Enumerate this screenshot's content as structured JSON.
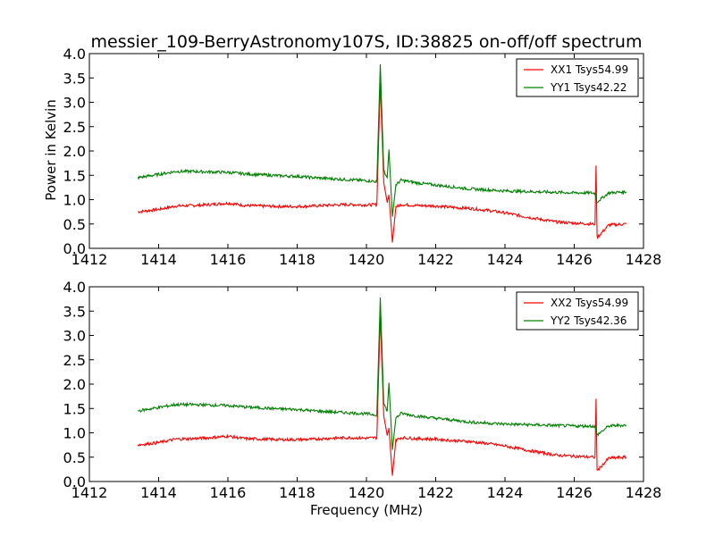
{
  "colors": {
    "xx": "#ff0000",
    "yy": "#008000"
  },
  "chart_data": [
    {
      "type": "line",
      "title": "messier_109-BerryAstronomy107S, ID:38825 on-off/off spectrum",
      "xlabel": "",
      "ylabel": "Power in Kelvin",
      "xlim": [
        1412,
        1428
      ],
      "ylim": [
        0.0,
        4.0
      ],
      "xticks": [
        "1412",
        "1414",
        "1416",
        "1418",
        "1420",
        "1422",
        "1424",
        "1426",
        "1428"
      ],
      "yticks": [
        "0.0",
        "0.5",
        "1.0",
        "1.5",
        "2.0",
        "2.5",
        "3.0",
        "3.5",
        "4.0"
      ],
      "legend_position": "top-right",
      "series": [
        {
          "name": "XX1 Tsys54.99",
          "color": "#ff0000",
          "points": [
            [
              1413.4,
              0.75
            ],
            [
              1414.0,
              0.8
            ],
            [
              1414.5,
              0.87
            ],
            [
              1415.0,
              0.88
            ],
            [
              1415.5,
              0.9
            ],
            [
              1416.0,
              0.93
            ],
            [
              1416.5,
              0.88
            ],
            [
              1417.0,
              0.87
            ],
            [
              1417.5,
              0.86
            ],
            [
              1418.0,
              0.86
            ],
            [
              1418.5,
              0.87
            ],
            [
              1419.0,
              0.89
            ],
            [
              1419.5,
              0.9
            ],
            [
              1420.0,
              0.89
            ],
            [
              1420.3,
              0.9
            ],
            [
              1420.4,
              3.4
            ],
            [
              1420.5,
              1.35
            ],
            [
              1420.6,
              0.95
            ],
            [
              1420.65,
              1.1
            ],
            [
              1420.75,
              0.12
            ],
            [
              1420.85,
              0.85
            ],
            [
              1421.0,
              0.9
            ],
            [
              1421.5,
              0.88
            ],
            [
              1422.0,
              0.87
            ],
            [
              1422.5,
              0.84
            ],
            [
              1423.0,
              0.82
            ],
            [
              1423.5,
              0.78
            ],
            [
              1424.0,
              0.73
            ],
            [
              1424.5,
              0.66
            ],
            [
              1425.0,
              0.6
            ],
            [
              1425.5,
              0.54
            ],
            [
              1426.0,
              0.52
            ],
            [
              1426.5,
              0.5
            ],
            [
              1426.6,
              0.5
            ],
            [
              1426.63,
              1.7
            ],
            [
              1426.66,
              0.22
            ],
            [
              1427.0,
              0.48
            ],
            [
              1427.5,
              0.5
            ]
          ]
        },
        {
          "name": "YY1 Tsys42.22",
          "color": "#008000",
          "points": [
            [
              1413.4,
              1.45
            ],
            [
              1414.0,
              1.52
            ],
            [
              1414.5,
              1.58
            ],
            [
              1415.0,
              1.58
            ],
            [
              1415.5,
              1.57
            ],
            [
              1416.0,
              1.56
            ],
            [
              1416.5,
              1.53
            ],
            [
              1417.0,
              1.51
            ],
            [
              1417.5,
              1.49
            ],
            [
              1418.0,
              1.48
            ],
            [
              1418.5,
              1.45
            ],
            [
              1419.0,
              1.43
            ],
            [
              1419.5,
              1.41
            ],
            [
              1420.0,
              1.39
            ],
            [
              1420.3,
              1.37
            ],
            [
              1420.4,
              3.78
            ],
            [
              1420.5,
              1.6
            ],
            [
              1420.6,
              1.45
            ],
            [
              1420.65,
              2.03
            ],
            [
              1420.75,
              0.65
            ],
            [
              1420.85,
              1.3
            ],
            [
              1421.0,
              1.4
            ],
            [
              1421.5,
              1.34
            ],
            [
              1422.0,
              1.3
            ],
            [
              1422.5,
              1.26
            ],
            [
              1423.0,
              1.22
            ],
            [
              1423.5,
              1.2
            ],
            [
              1424.0,
              1.18
            ],
            [
              1424.5,
              1.17
            ],
            [
              1425.0,
              1.16
            ],
            [
              1425.5,
              1.15
            ],
            [
              1426.0,
              1.14
            ],
            [
              1426.5,
              1.14
            ],
            [
              1426.6,
              1.13
            ],
            [
              1426.65,
              0.95
            ],
            [
              1427.0,
              1.14
            ],
            [
              1427.5,
              1.16
            ]
          ]
        }
      ]
    },
    {
      "type": "line",
      "title": "",
      "xlabel": "Frequency (MHz)",
      "ylabel": "",
      "xlim": [
        1412,
        1428
      ],
      "ylim": [
        0.0,
        4.0
      ],
      "xticks": [
        "1412",
        "1414",
        "1416",
        "1418",
        "1420",
        "1422",
        "1424",
        "1426",
        "1428"
      ],
      "yticks": [
        "0.0",
        "0.5",
        "1.0",
        "1.5",
        "2.0",
        "2.5",
        "3.0",
        "3.5",
        "4.0"
      ],
      "legend_position": "top-right",
      "series": [
        {
          "name": "XX2 Tsys54.99",
          "color": "#ff0000",
          "points": [
            [
              1413.4,
              0.75
            ],
            [
              1414.0,
              0.8
            ],
            [
              1414.5,
              0.87
            ],
            [
              1415.0,
              0.88
            ],
            [
              1415.5,
              0.9
            ],
            [
              1416.0,
              0.93
            ],
            [
              1416.5,
              0.88
            ],
            [
              1417.0,
              0.87
            ],
            [
              1417.5,
              0.86
            ],
            [
              1418.0,
              0.86
            ],
            [
              1418.5,
              0.87
            ],
            [
              1419.0,
              0.89
            ],
            [
              1419.5,
              0.9
            ],
            [
              1420.0,
              0.89
            ],
            [
              1420.3,
              0.9
            ],
            [
              1420.4,
              3.4
            ],
            [
              1420.5,
              1.35
            ],
            [
              1420.6,
              0.95
            ],
            [
              1420.65,
              1.1
            ],
            [
              1420.75,
              0.12
            ],
            [
              1420.85,
              0.85
            ],
            [
              1421.0,
              0.9
            ],
            [
              1421.5,
              0.88
            ],
            [
              1422.0,
              0.87
            ],
            [
              1422.5,
              0.84
            ],
            [
              1423.0,
              0.82
            ],
            [
              1423.5,
              0.78
            ],
            [
              1424.0,
              0.73
            ],
            [
              1424.5,
              0.66
            ],
            [
              1425.0,
              0.6
            ],
            [
              1425.5,
              0.54
            ],
            [
              1426.0,
              0.52
            ],
            [
              1426.5,
              0.5
            ],
            [
              1426.6,
              0.5
            ],
            [
              1426.63,
              1.7
            ],
            [
              1426.66,
              0.22
            ],
            [
              1427.0,
              0.48
            ],
            [
              1427.5,
              0.5
            ]
          ]
        },
        {
          "name": "YY2 Tsys42.36",
          "color": "#008000",
          "points": [
            [
              1413.4,
              1.45
            ],
            [
              1414.0,
              1.52
            ],
            [
              1414.5,
              1.58
            ],
            [
              1415.0,
              1.58
            ],
            [
              1415.5,
              1.57
            ],
            [
              1416.0,
              1.56
            ],
            [
              1416.5,
              1.53
            ],
            [
              1417.0,
              1.51
            ],
            [
              1417.5,
              1.49
            ],
            [
              1418.0,
              1.48
            ],
            [
              1418.5,
              1.45
            ],
            [
              1419.0,
              1.43
            ],
            [
              1419.5,
              1.41
            ],
            [
              1420.0,
              1.39
            ],
            [
              1420.3,
              1.37
            ],
            [
              1420.4,
              3.78
            ],
            [
              1420.5,
              1.6
            ],
            [
              1420.6,
              1.45
            ],
            [
              1420.65,
              2.03
            ],
            [
              1420.75,
              0.65
            ],
            [
              1420.85,
              1.3
            ],
            [
              1421.0,
              1.4
            ],
            [
              1421.5,
              1.34
            ],
            [
              1422.0,
              1.3
            ],
            [
              1422.5,
              1.26
            ],
            [
              1423.0,
              1.22
            ],
            [
              1423.5,
              1.2
            ],
            [
              1424.0,
              1.18
            ],
            [
              1424.5,
              1.17
            ],
            [
              1425.0,
              1.16
            ],
            [
              1425.5,
              1.15
            ],
            [
              1426.0,
              1.14
            ],
            [
              1426.5,
              1.14
            ],
            [
              1426.6,
              1.13
            ],
            [
              1426.65,
              0.95
            ],
            [
              1427.0,
              1.14
            ],
            [
              1427.5,
              1.16
            ]
          ]
        }
      ]
    }
  ]
}
